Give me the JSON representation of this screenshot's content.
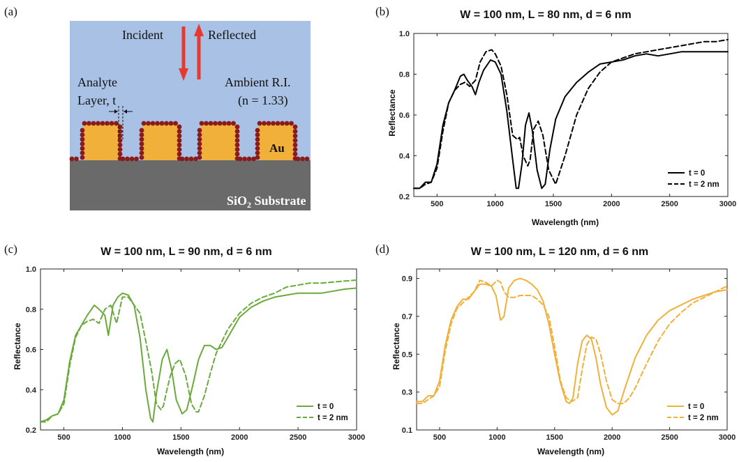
{
  "panel_labels": [
    "(a)",
    "(b)",
    "(c)",
    "(d)"
  ],
  "schematic": {
    "incident": "Incident",
    "reflected": "Reflected",
    "analyte_line1": "Analyte",
    "analyte_line2": "Layer, t",
    "ambient_line1": "Ambient R.I.",
    "ambient_line2": "(n = 1.33)",
    "metal": "Au",
    "substrate_pre": "SiO",
    "substrate_sub": "2",
    "substrate_post": " Substrate",
    "colors": {
      "ambient": "#a8c1e5",
      "gold": "#f0b03a",
      "substrate": "#6a6a6a",
      "analyte": "#8b1a1a",
      "arrow": "#e53a2f"
    },
    "icons": [
      "arrow-down-icon",
      "arrow-up-icon"
    ]
  },
  "chart_data": [
    {
      "id": "b",
      "type": "line",
      "title": "W = 100 nm, L = 80 nm, d = 6 nm",
      "xlabel": "Wavelength (nm)",
      "ylabel": "Reflectance",
      "xlim": [
        300,
        3000
      ],
      "ylim": [
        0.2,
        1.0
      ],
      "xticks": [
        500,
        1000,
        1500,
        2000,
        2500,
        3000
      ],
      "yticks": [
        0.2,
        0.4,
        0.6,
        0.8,
        1.0
      ],
      "ytick_labels": [
        "0.2",
        "0.4",
        "0.6",
        "0.8",
        "1.0"
      ],
      "color": "#000000",
      "legend_position": "bottom-right",
      "series": [
        {
          "name": "t = 0",
          "style": "solid",
          "x": [
            300,
            350,
            400,
            450,
            500,
            550,
            600,
            650,
            700,
            730,
            760,
            800,
            830,
            860,
            900,
            960,
            1000,
            1050,
            1100,
            1150,
            1180,
            1200,
            1230,
            1260,
            1290,
            1320,
            1360,
            1400,
            1430,
            1470,
            1520,
            1600,
            1700,
            1800,
            1900,
            2000,
            2100,
            2200,
            2300,
            2400,
            2500,
            2600,
            2700,
            2800,
            2900,
            3000
          ],
          "y": [
            0.24,
            0.24,
            0.27,
            0.27,
            0.36,
            0.55,
            0.66,
            0.72,
            0.79,
            0.8,
            0.77,
            0.74,
            0.7,
            0.76,
            0.82,
            0.87,
            0.86,
            0.8,
            0.62,
            0.38,
            0.24,
            0.24,
            0.36,
            0.55,
            0.61,
            0.52,
            0.33,
            0.24,
            0.26,
            0.43,
            0.58,
            0.69,
            0.76,
            0.81,
            0.85,
            0.86,
            0.87,
            0.89,
            0.9,
            0.89,
            0.9,
            0.91,
            0.91,
            0.91,
            0.91,
            0.91
          ]
        },
        {
          "name": "t = 2 nm",
          "style": "dashed",
          "x": [
            300,
            350,
            400,
            450,
            500,
            550,
            600,
            650,
            700,
            740,
            780,
            830,
            870,
            920,
            970,
            1000,
            1050,
            1100,
            1150,
            1190,
            1210,
            1240,
            1280,
            1300,
            1330,
            1370,
            1410,
            1460,
            1520,
            1600,
            1700,
            1800,
            1900,
            2000,
            2100,
            2200,
            2300,
            2400,
            2500,
            2600,
            2700,
            2800,
            2900,
            3000
          ],
          "y": [
            0.24,
            0.24,
            0.26,
            0.27,
            0.34,
            0.52,
            0.66,
            0.72,
            0.75,
            0.76,
            0.74,
            0.77,
            0.86,
            0.91,
            0.92,
            0.9,
            0.84,
            0.7,
            0.5,
            0.48,
            0.49,
            0.4,
            0.35,
            0.38,
            0.53,
            0.57,
            0.5,
            0.33,
            0.26,
            0.4,
            0.6,
            0.73,
            0.81,
            0.86,
            0.88,
            0.9,
            0.91,
            0.92,
            0.93,
            0.94,
            0.95,
            0.96,
            0.96,
            0.97
          ]
        }
      ]
    },
    {
      "id": "c",
      "type": "line",
      "title": "W = 100 nm, L = 90 nm, d = 6 nm",
      "xlabel": "Wavelength (nm)",
      "ylabel": "Reflectance",
      "xlim": [
        300,
        3000
      ],
      "ylim": [
        0.2,
        1.0
      ],
      "xticks": [
        500,
        1000,
        1500,
        2000,
        2500,
        3000
      ],
      "yticks": [
        0.2,
        0.4,
        0.6,
        0.8,
        1.0
      ],
      "ytick_labels": [
        "0.2",
        "0.4",
        "0.6",
        "0.8",
        "1.0"
      ],
      "color": "#6aaa3a",
      "legend_position": "bottom-right",
      "series": [
        {
          "name": "t = 0",
          "style": "solid",
          "x": [
            300,
            350,
            400,
            450,
            500,
            550,
            600,
            650,
            700,
            760,
            800,
            850,
            880,
            920,
            960,
            1000,
            1050,
            1100,
            1150,
            1200,
            1240,
            1260,
            1290,
            1340,
            1380,
            1420,
            1460,
            1510,
            1550,
            1600,
            1650,
            1700,
            1750,
            1800,
            1850,
            1900,
            2000,
            2100,
            2200,
            2300,
            2400,
            2500,
            2600,
            2700,
            2800,
            2900,
            3000
          ],
          "y": [
            0.24,
            0.25,
            0.27,
            0.28,
            0.35,
            0.54,
            0.67,
            0.72,
            0.77,
            0.82,
            0.8,
            0.77,
            0.67,
            0.82,
            0.86,
            0.88,
            0.87,
            0.82,
            0.66,
            0.4,
            0.26,
            0.24,
            0.38,
            0.55,
            0.6,
            0.5,
            0.35,
            0.28,
            0.3,
            0.42,
            0.55,
            0.62,
            0.62,
            0.6,
            0.61,
            0.66,
            0.76,
            0.81,
            0.84,
            0.86,
            0.87,
            0.88,
            0.88,
            0.88,
            0.89,
            0.9,
            0.905
          ]
        },
        {
          "name": "t = 2 nm",
          "style": "dashed",
          "x": [
            300,
            350,
            400,
            450,
            500,
            550,
            600,
            650,
            700,
            750,
            800,
            850,
            900,
            950,
            1000,
            1050,
            1100,
            1150,
            1200,
            1250,
            1290,
            1330,
            1350,
            1380,
            1410,
            1450,
            1490,
            1540,
            1590,
            1630,
            1650,
            1700,
            1750,
            1800,
            1900,
            2000,
            2100,
            2200,
            2300,
            2400,
            2500,
            2600,
            2700,
            2800,
            2900,
            3000
          ],
          "y": [
            0.24,
            0.24,
            0.27,
            0.28,
            0.33,
            0.52,
            0.66,
            0.72,
            0.74,
            0.75,
            0.73,
            0.8,
            0.82,
            0.73,
            0.86,
            0.86,
            0.82,
            0.78,
            0.64,
            0.49,
            0.33,
            0.3,
            0.32,
            0.4,
            0.47,
            0.53,
            0.55,
            0.47,
            0.33,
            0.29,
            0.29,
            0.37,
            0.48,
            0.58,
            0.7,
            0.78,
            0.83,
            0.86,
            0.88,
            0.91,
            0.92,
            0.93,
            0.93,
            0.935,
            0.94,
            0.945
          ]
        }
      ]
    },
    {
      "id": "d",
      "type": "line",
      "title": "W = 100 nm, L = 120 nm, d = 6 nm",
      "xlabel": "Wavelength (nm)",
      "ylabel": "Reflectance",
      "xlim": [
        300,
        3000
      ],
      "ylim": [
        0.1,
        0.95
      ],
      "xticks": [
        500,
        1000,
        1500,
        2000,
        2500,
        3000
      ],
      "yticks": [
        0.1,
        0.3,
        0.5,
        0.7,
        0.9
      ],
      "ytick_labels": [
        "0.1",
        "0.3",
        "0.5",
        "0.7",
        "0.9"
      ],
      "color": "#f0b03a",
      "legend_position": "bottom-right",
      "series": [
        {
          "name": "t = 0",
          "style": "solid",
          "x": [
            300,
            350,
            400,
            450,
            500,
            550,
            600,
            650,
            700,
            750,
            800,
            850,
            900,
            950,
            990,
            1030,
            1060,
            1100,
            1150,
            1200,
            1250,
            1300,
            1350,
            1400,
            1450,
            1500,
            1550,
            1600,
            1630,
            1660,
            1700,
            1740,
            1780,
            1820,
            1860,
            1900,
            1950,
            2000,
            2050,
            2100,
            2200,
            2300,
            2400,
            2500,
            2600,
            2700,
            2800,
            2900,
            3000
          ],
          "y": [
            0.25,
            0.25,
            0.28,
            0.28,
            0.36,
            0.55,
            0.68,
            0.75,
            0.79,
            0.79,
            0.83,
            0.87,
            0.87,
            0.86,
            0.81,
            0.68,
            0.7,
            0.85,
            0.89,
            0.9,
            0.89,
            0.87,
            0.84,
            0.78,
            0.66,
            0.5,
            0.35,
            0.25,
            0.24,
            0.27,
            0.45,
            0.57,
            0.6,
            0.58,
            0.48,
            0.34,
            0.22,
            0.18,
            0.2,
            0.3,
            0.48,
            0.6,
            0.68,
            0.73,
            0.76,
            0.79,
            0.81,
            0.83,
            0.84
          ]
        },
        {
          "name": "t = 2 nm",
          "style": "dashed",
          "x": [
            300,
            350,
            400,
            450,
            500,
            550,
            600,
            650,
            700,
            750,
            800,
            850,
            900,
            950,
            1000,
            1030,
            1060,
            1100,
            1150,
            1200,
            1250,
            1300,
            1350,
            1400,
            1450,
            1500,
            1550,
            1600,
            1650,
            1700,
            1740,
            1780,
            1820,
            1860,
            1900,
            1950,
            2000,
            2050,
            2100,
            2150,
            2200,
            2300,
            2400,
            2500,
            2600,
            2700,
            2800,
            2900,
            3000
          ],
          "y": [
            0.24,
            0.24,
            0.26,
            0.28,
            0.33,
            0.52,
            0.66,
            0.74,
            0.77,
            0.8,
            0.83,
            0.89,
            0.88,
            0.86,
            0.89,
            0.88,
            0.83,
            0.8,
            0.8,
            0.81,
            0.81,
            0.81,
            0.79,
            0.76,
            0.7,
            0.54,
            0.36,
            0.27,
            0.25,
            0.27,
            0.42,
            0.55,
            0.59,
            0.58,
            0.5,
            0.36,
            0.26,
            0.24,
            0.24,
            0.27,
            0.32,
            0.45,
            0.57,
            0.66,
            0.72,
            0.77,
            0.8,
            0.83,
            0.86
          ]
        }
      ]
    }
  ]
}
